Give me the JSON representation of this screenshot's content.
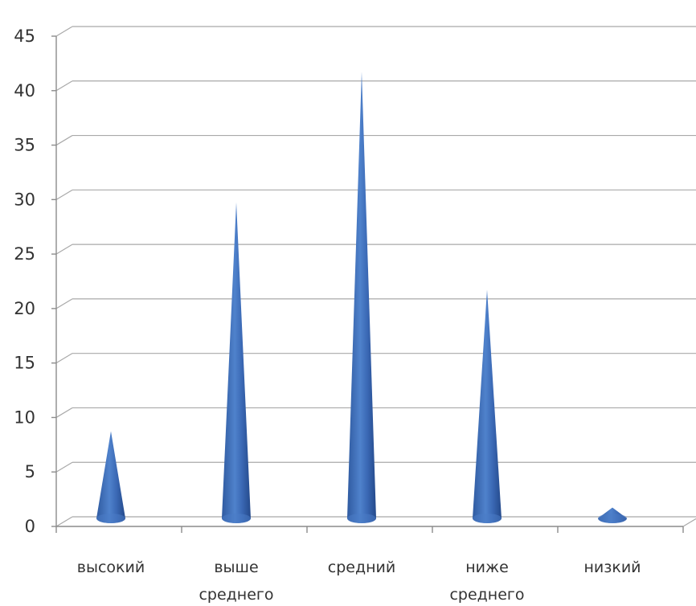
{
  "chart_data": {
    "type": "bar",
    "style": "3d-cone",
    "categories": [
      [
        "высокий"
      ],
      [
        "выше",
        "среднего"
      ],
      [
        "средний"
      ],
      [
        "ниже",
        "среднего"
      ],
      [
        "низкий"
      ]
    ],
    "values": [
      8,
      29,
      41,
      21,
      1
    ],
    "ylim": [
      0,
      45
    ],
    "yticks": [
      0,
      5,
      10,
      15,
      20,
      25,
      30,
      35,
      40,
      45
    ],
    "grid": true,
    "legend": "none",
    "colors": {
      "cone_dark": "#2f5aa0",
      "cone_mid": "#4a7cc6",
      "cone_light": "#7aa3dc",
      "grid": "#a9a9a9",
      "text": "#333333"
    }
  }
}
